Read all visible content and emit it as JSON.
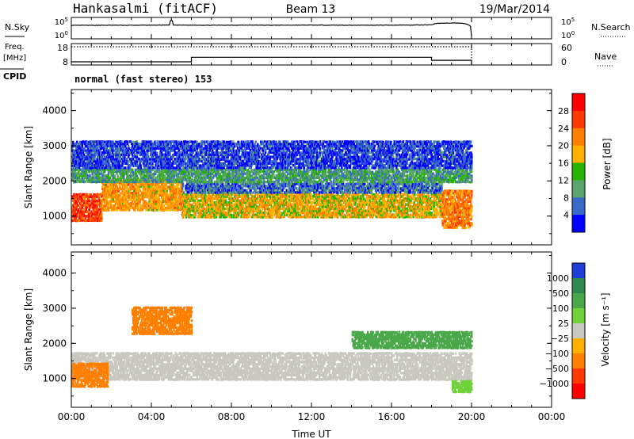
{
  "header": {
    "station": "Hankasalmi (fitACF)",
    "beam": "Beam 13",
    "date": "19/Mar/2014"
  },
  "strip_labels": {
    "nsky": "N.Sky",
    "nsearch": "N.Search",
    "freq_line1": "Freq.",
    "freq_line2": "[MHz]",
    "nave": "Nave",
    "cpid": "CPID",
    "cpid_value": "normal (fast stereo) 153"
  },
  "chart_data": [
    {
      "type": "line",
      "name_key": "noise",
      "ylim": [
        1,
        100000
      ],
      "log_scale": true,
      "left_ticks": [
        "10^5",
        "10^0"
      ],
      "right_ticks": [
        "10^5",
        "10^0"
      ],
      "series": [
        {
          "name": "N.Sky",
          "style": "solid",
          "x": [
            0,
            0.5,
            1,
            2,
            3,
            4,
            4.9,
            5.0,
            5.1,
            6,
            7,
            8,
            9,
            10,
            11,
            12,
            13,
            14,
            15,
            16,
            17,
            18,
            18.3,
            19,
            19.5,
            20
          ],
          "y": [
            2000,
            2300,
            2200,
            2400,
            2300,
            2500,
            2600,
            90000,
            2600,
            2500,
            2400,
            2500,
            2600,
            2400,
            2500,
            2600,
            2500,
            2400,
            2500,
            2600,
            2700,
            3000,
            9000,
            11000,
            10000,
            1
          ]
        }
      ],
      "time_range_hours": [
        0,
        24
      ]
    },
    {
      "type": "line",
      "name_key": "freq_nave",
      "left_ylim": [
        8,
        18
      ],
      "right_ylim": [
        0,
        60
      ],
      "left_ticks": [
        "18",
        "8"
      ],
      "right_ticks": [
        "60",
        "0"
      ],
      "series": [
        {
          "name": "Freq.",
          "style": "solid",
          "axis": "left",
          "x": [
            0,
            6,
            6,
            18,
            18,
            20,
            20
          ],
          "y": [
            9.5,
            9.5,
            11.6,
            11.6,
            10.2,
            10.2,
            8
          ]
        },
        {
          "name": "Nave",
          "style": "dotted",
          "axis": "right",
          "x": [
            0,
            20,
            20
          ],
          "y": [
            51,
            51,
            0
          ]
        }
      ],
      "time_range_hours": [
        0,
        24
      ]
    },
    {
      "type": "heatmap",
      "name_key": "power",
      "ylabel": "Slant Range [km]",
      "ylim": [
        180,
        4600
      ],
      "yticks": [
        "4000",
        "3000",
        "2000",
        "1000"
      ],
      "colorbar_label": "Power [dB]",
      "colorbar_ticks": [
        "28",
        "24",
        "20",
        "16",
        "12",
        "8",
        "4"
      ],
      "colorbar_colors": [
        "#ff0000",
        "#ff3a00",
        "#ff8000",
        "#ffb000",
        "#27b400",
        "#5aa56b",
        "#3a6ac8",
        "#0000ff"
      ],
      "regions": [
        {
          "t": [
            0.0,
            1.5
          ],
          "r": [
            900,
            1700
          ],
          "level": 26
        },
        {
          "t": [
            1.5,
            5.5
          ],
          "r": [
            1200,
            2100
          ],
          "level": 20
        },
        {
          "t": [
            5.5,
            18.5
          ],
          "r": [
            1000,
            1700
          ],
          "level": 18
        },
        {
          "t": [
            5.5,
            18.5
          ],
          "r": [
            1700,
            2000
          ],
          "level": 6
        },
        {
          "t": [
            0.0,
            20.0
          ],
          "r": [
            2000,
            2400
          ],
          "level": 10
        },
        {
          "t": [
            18.5,
            20.0
          ],
          "r": [
            700,
            1800
          ],
          "level": 22
        },
        {
          "t": [
            0.0,
            20.0
          ],
          "r": [
            2400,
            3200
          ],
          "level": 4
        }
      ]
    },
    {
      "type": "heatmap",
      "name_key": "velocity",
      "ylabel": "Slant Range [km]",
      "ylim": [
        180,
        4600
      ],
      "yticks": [
        "4000",
        "3000",
        "2000",
        "1000"
      ],
      "xticks": [
        "00:00",
        "04:00",
        "08:00",
        "12:00",
        "16:00",
        "20:00",
        "00:00"
      ],
      "xlabel": "Time UT",
      "colorbar_label": "Velocity [m s⁻¹]",
      "colorbar_ticks": [
        "1000",
        "500",
        "100",
        "25",
        "−25",
        "−100",
        "−500",
        "−1000"
      ],
      "colorbar_colors": [
        "#1e3ed8",
        "#2f8a50",
        "#4aa84a",
        "#6fd23a",
        "#c8c8c0",
        "#ffb000",
        "#ff8000",
        "#ff3a00",
        "#ff0000"
      ],
      "regions": [
        {
          "t": [
            0.0,
            20.0
          ],
          "r": [
            1000,
            1800
          ],
          "level": 0
        },
        {
          "t": [
            0.0,
            1.8
          ],
          "r": [
            800,
            1500
          ],
          "level": -300
        },
        {
          "t": [
            3.0,
            6.0
          ],
          "r": [
            2300,
            3100
          ],
          "level": -300
        },
        {
          "t": [
            14.0,
            20.0
          ],
          "r": [
            1900,
            2400
          ],
          "level": 300
        },
        {
          "t": [
            19.0,
            20.0
          ],
          "r": [
            650,
            1000
          ],
          "level": 60
        }
      ]
    }
  ]
}
